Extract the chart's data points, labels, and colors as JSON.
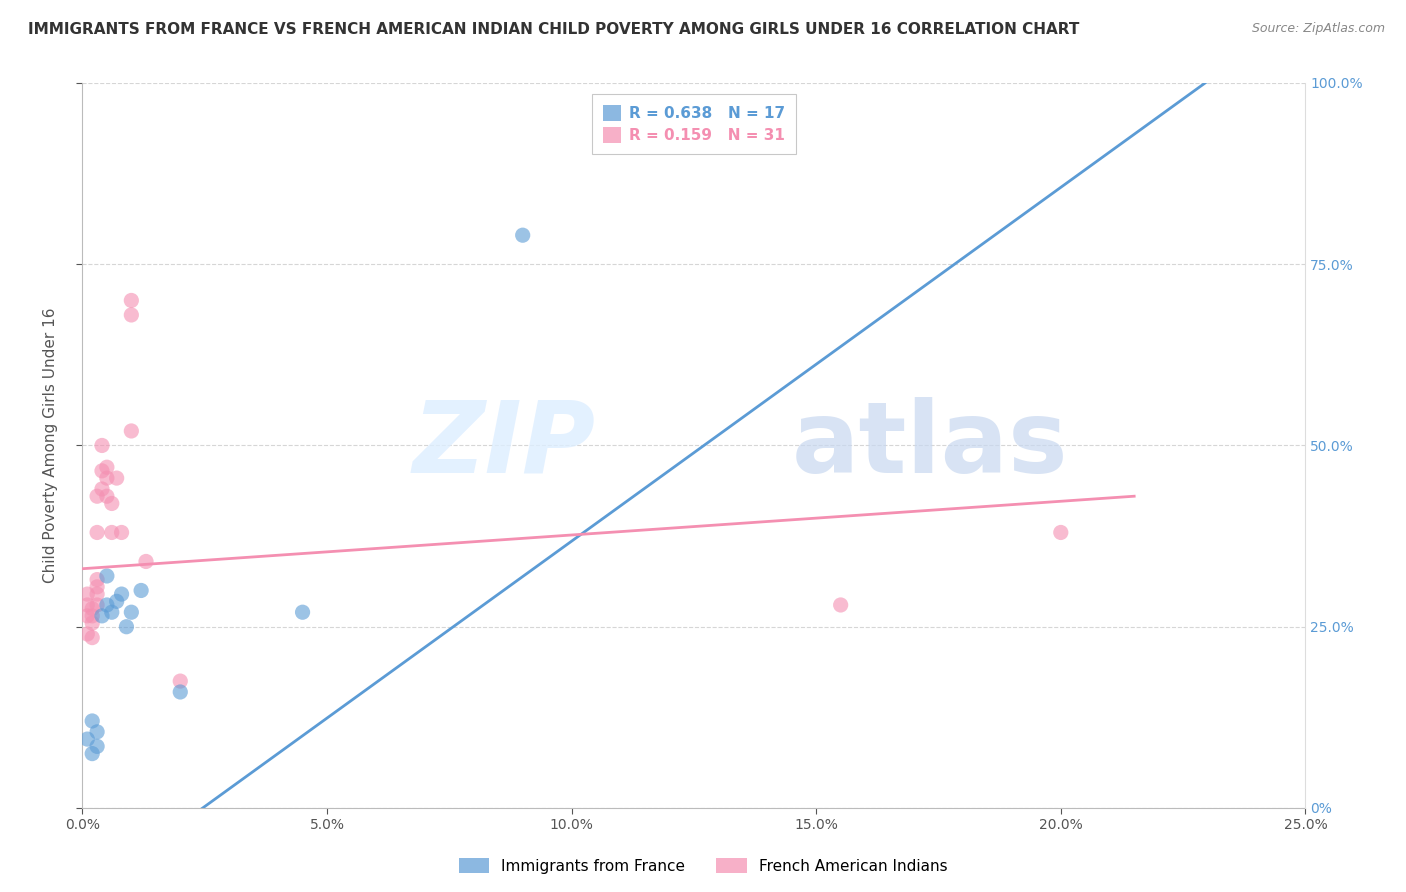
{
  "title": "IMMIGRANTS FROM FRANCE VS FRENCH AMERICAN INDIAN CHILD POVERTY AMONG GIRLS UNDER 16 CORRELATION CHART",
  "source": "Source: ZipAtlas.com",
  "ylabel": "Child Poverty Among Girls Under 16",
  "xlim": [
    0.0,
    0.25
  ],
  "ylim": [
    0.0,
    1.0
  ],
  "xticks": [
    0.0,
    0.05,
    0.1,
    0.15,
    0.2,
    0.25
  ],
  "yticks": [
    0.0,
    0.25,
    0.5,
    0.75,
    1.0
  ],
  "xticklabels": [
    "0.0%",
    "5.0%",
    "10.0%",
    "15.0%",
    "20.0%",
    "25.0%"
  ],
  "yticklabels_right": [
    "0%",
    "25.0%",
    "50.0%",
    "75.0%",
    "100.0%"
  ],
  "blue_color": "#5B9BD5",
  "pink_color": "#F48FB1",
  "blue_R": 0.638,
  "blue_N": 17,
  "pink_R": 0.159,
  "pink_N": 31,
  "blue_legend": "Immigrants from France",
  "pink_legend": "French American Indians",
  "watermark": "ZIPatlas",
  "blue_dots": [
    [
      0.001,
      0.095
    ],
    [
      0.002,
      0.075
    ],
    [
      0.002,
      0.12
    ],
    [
      0.003,
      0.105
    ],
    [
      0.003,
      0.085
    ],
    [
      0.004,
      0.265
    ],
    [
      0.005,
      0.28
    ],
    [
      0.005,
      0.32
    ],
    [
      0.006,
      0.27
    ],
    [
      0.007,
      0.285
    ],
    [
      0.008,
      0.295
    ],
    [
      0.009,
      0.25
    ],
    [
      0.01,
      0.27
    ],
    [
      0.012,
      0.3
    ],
    [
      0.02,
      0.16
    ],
    [
      0.045,
      0.27
    ],
    [
      0.09,
      0.79
    ]
  ],
  "pink_dots": [
    [
      0.001,
      0.265
    ],
    [
      0.001,
      0.28
    ],
    [
      0.001,
      0.295
    ],
    [
      0.001,
      0.24
    ],
    [
      0.002,
      0.255
    ],
    [
      0.002,
      0.265
    ],
    [
      0.002,
      0.275
    ],
    [
      0.002,
      0.235
    ],
    [
      0.003,
      0.28
    ],
    [
      0.003,
      0.295
    ],
    [
      0.003,
      0.305
    ],
    [
      0.003,
      0.315
    ],
    [
      0.003,
      0.38
    ],
    [
      0.003,
      0.43
    ],
    [
      0.004,
      0.44
    ],
    [
      0.004,
      0.465
    ],
    [
      0.004,
      0.5
    ],
    [
      0.005,
      0.455
    ],
    [
      0.005,
      0.47
    ],
    [
      0.005,
      0.43
    ],
    [
      0.006,
      0.38
    ],
    [
      0.006,
      0.42
    ],
    [
      0.007,
      0.455
    ],
    [
      0.008,
      0.38
    ],
    [
      0.01,
      0.52
    ],
    [
      0.01,
      0.68
    ],
    [
      0.01,
      0.7
    ],
    [
      0.013,
      0.34
    ],
    [
      0.02,
      0.175
    ],
    [
      0.155,
      0.28
    ],
    [
      0.2,
      0.38
    ]
  ],
  "blue_line_x": [
    0.0,
    0.25
  ],
  "blue_line_y": [
    -0.12,
    1.1
  ],
  "pink_line_x": [
    0.0,
    0.215
  ],
  "pink_line_y": [
    0.33,
    0.43
  ],
  "background_color": "#FFFFFF",
  "grid_color": "#BBBBBB",
  "title_fontsize": 11,
  "axis_label_fontsize": 11,
  "tick_fontsize": 10,
  "legend_fontsize": 11,
  "dot_size": 120
}
